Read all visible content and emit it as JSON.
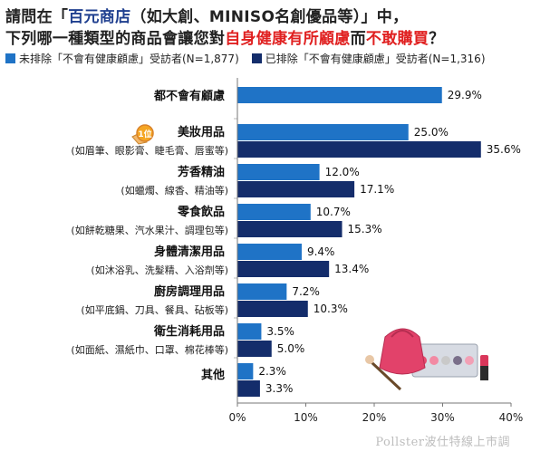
{
  "title": {
    "line1": [
      "請問在「",
      "百元商店",
      "（如大創、MINISO名創優品等）」中，"
    ],
    "line2": [
      "下列哪一種類型的商品會讓您對",
      "自身健康有所顧慮",
      "而",
      "不敢購買",
      "？"
    ]
  },
  "badge": "1位",
  "watermark": "Pollster波仕特線上市調",
  "colors": {
    "series1": "#1f73c6",
    "series2": "#142d6b",
    "highlight_blue": "#1f3f8f",
    "highlight_red": "#e02020"
  },
  "chart_data": {
    "type": "bar",
    "orientation": "horizontal",
    "series": [
      {
        "name": "未排除「不會有健康顧慮」受訪者(N=1,877)",
        "values": [
          29.9,
          25.0,
          12.0,
          10.7,
          9.4,
          7.2,
          3.5,
          2.3
        ]
      },
      {
        "name": "已排除「不會有健康顧慮」受訪者(N=1,316)",
        "values": [
          null,
          35.6,
          17.1,
          15.3,
          13.4,
          10.3,
          5.0,
          3.3
        ]
      }
    ],
    "categories": [
      {
        "label": "都不會有顧慮",
        "sub": ""
      },
      {
        "label": "美妝用品",
        "sub": "(如眉筆、眼影膏、睫毛膏、唇蜜等)"
      },
      {
        "label": "芳香精油",
        "sub": "(如蠟燭、線香、精油等)"
      },
      {
        "label": "零食飲品",
        "sub": "(如餅乾糖果、汽水果汁、調理包等)"
      },
      {
        "label": "身體清潔用品",
        "sub": "(如沐浴乳、洗髮精、入浴劑等)"
      },
      {
        "label": "廚房調理用品",
        "sub": "(如平底鍋、刀具、餐具、砧板等)"
      },
      {
        "label": "衛生消耗用品",
        "sub": "(如面紙、濕紙巾、口罩、棉花棒等)"
      },
      {
        "label": "其他",
        "sub": ""
      }
    ],
    "value_labels": [
      [
        "29.9%",
        null
      ],
      [
        "25.0%",
        "35.6%"
      ],
      [
        "12.0%",
        "17.1%"
      ],
      [
        "10.7%",
        "15.3%"
      ],
      [
        "9.4%",
        "13.4%"
      ],
      [
        "7.2%",
        "10.3%"
      ],
      [
        "3.5%",
        "5.0%"
      ],
      [
        "2.3%",
        "3.3%"
      ]
    ],
    "x_ticks": [
      "0%",
      "10%",
      "20%",
      "30%",
      "40%"
    ],
    "xlim": [
      0,
      40
    ],
    "legend_position": "top"
  }
}
